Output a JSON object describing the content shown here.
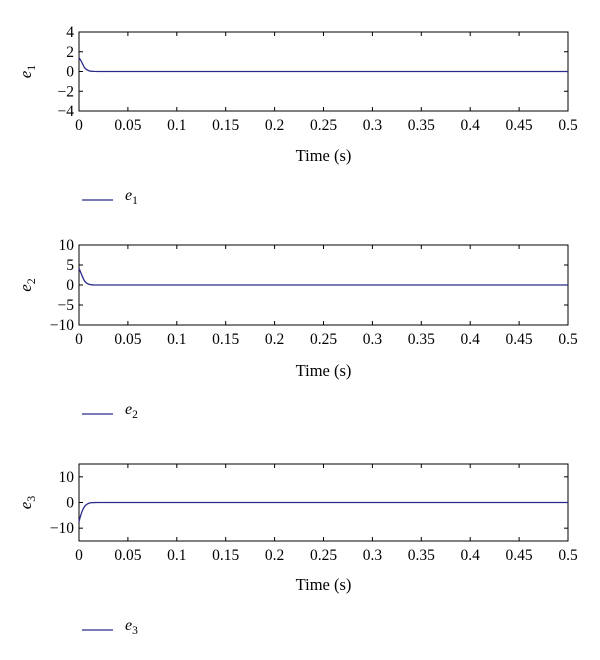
{
  "chart_data": [
    {
      "type": "line",
      "xlabel": "Time (s)",
      "ylabel": {
        "main": "e",
        "sub": "1"
      },
      "xlim": [
        0,
        0.5
      ],
      "ylim": [
        -4,
        4
      ],
      "xticks": [
        "0",
        "0.05",
        "0.1",
        "0.15",
        "0.2",
        "0.25",
        "0.3",
        "0.35",
        "0.4",
        "0.45",
        "0.5"
      ],
      "yticks": [
        "4",
        "2",
        "0",
        "−2",
        "−4"
      ],
      "grid": false,
      "legend_position": "below-left",
      "series": [
        {
          "name": {
            "main": "e",
            "sub": "1"
          },
          "color": "#2b2b8c",
          "x": [
            0,
            0.001,
            0.002,
            0.003,
            0.004,
            0.005,
            0.006,
            0.008,
            0.01,
            0.012,
            0.015,
            0.02,
            0.05,
            0.1,
            0.2,
            0.3,
            0.4,
            0.5
          ],
          "y": [
            1.4,
            1.25,
            1.1,
            0.9,
            0.7,
            0.5,
            0.35,
            0.18,
            0.08,
            0.03,
            0.01,
            0,
            0,
            0,
            0,
            0,
            0,
            0
          ]
        }
      ]
    },
    {
      "type": "line",
      "xlabel": "Time (s)",
      "ylabel": {
        "main": "e",
        "sub": "2"
      },
      "xlim": [
        0,
        0.5
      ],
      "ylim": [
        -10,
        10
      ],
      "xticks": [
        "0",
        "0.05",
        "0.1",
        "0.15",
        "0.2",
        "0.25",
        "0.3",
        "0.35",
        "0.4",
        "0.45",
        "0.5"
      ],
      "yticks": [
        "10",
        "5",
        "0",
        "−5",
        "−10"
      ],
      "grid": false,
      "legend_position": "below-left",
      "series": [
        {
          "name": {
            "main": "e",
            "sub": "2"
          },
          "color": "#2b2b8c",
          "x": [
            0,
            0.001,
            0.002,
            0.003,
            0.004,
            0.005,
            0.006,
            0.008,
            0.01,
            0.012,
            0.015,
            0.02,
            0.05,
            0.1,
            0.2,
            0.3,
            0.4,
            0.5
          ],
          "y": [
            4.2,
            3.6,
            3.0,
            2.4,
            1.8,
            1.3,
            0.9,
            0.45,
            0.2,
            0.08,
            0.02,
            0,
            0,
            0,
            0,
            0,
            0,
            0
          ]
        }
      ]
    },
    {
      "type": "line",
      "xlabel": "Time (s)",
      "ylabel": {
        "main": "e",
        "sub": "3"
      },
      "xlim": [
        0,
        0.5
      ],
      "ylim": [
        -15,
        15
      ],
      "xticks": [
        "0",
        "0.05",
        "0.1",
        "0.15",
        "0.2",
        "0.25",
        "0.3",
        "0.35",
        "0.4",
        "0.45",
        "0.5"
      ],
      "yticks": [
        "10",
        "0",
        "−10"
      ],
      "grid": false,
      "legend_position": "below-left",
      "series": [
        {
          "name": {
            "main": "e",
            "sub": "3"
          },
          "color": "#2b2b8c",
          "x": [
            0,
            0.001,
            0.002,
            0.003,
            0.004,
            0.005,
            0.006,
            0.008,
            0.01,
            0.012,
            0.015,
            0.02,
            0.05,
            0.1,
            0.2,
            0.3,
            0.4,
            0.5
          ],
          "y": [
            -7.5,
            -6.0,
            -4.7,
            -3.6,
            -2.7,
            -2.0,
            -1.4,
            -0.7,
            -0.3,
            -0.1,
            -0.03,
            0,
            0,
            0,
            0,
            0,
            0,
            0
          ]
        }
      ]
    }
  ]
}
